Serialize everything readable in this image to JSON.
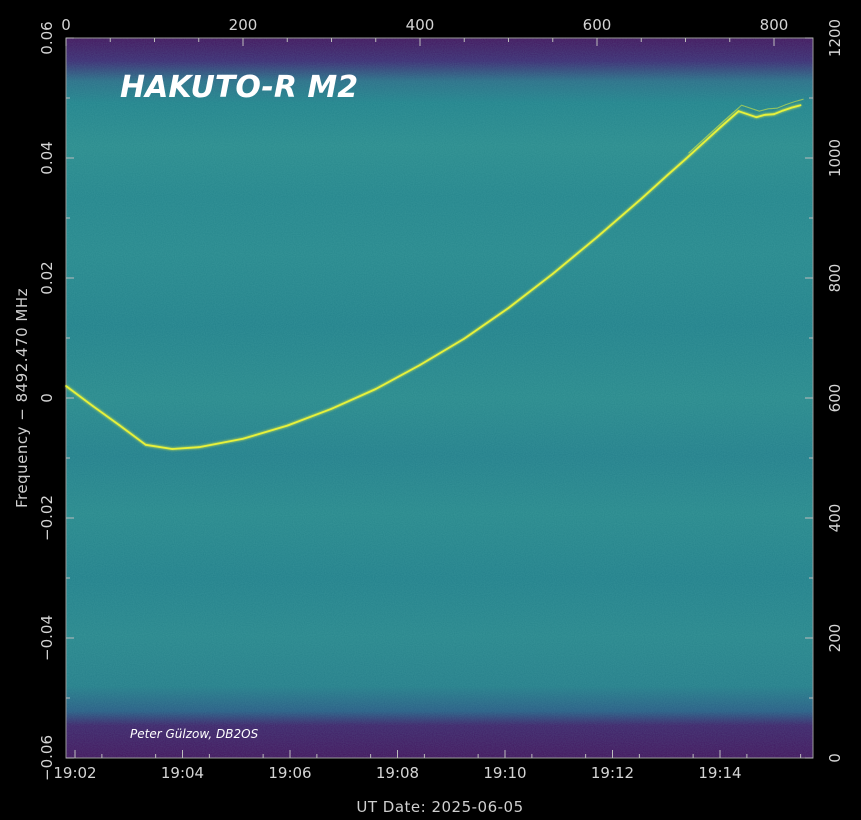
{
  "chart_data": {
    "type": "waterfall-spectrogram",
    "title": "HAKUTO-R M2",
    "credit": "Peter Gülzow, DB2OS",
    "xlabel": "UT Date: 2025-06-05",
    "ylabel": "Frequency − 8492.470 MHz",
    "x_bottom_ticks": [
      "19:02",
      "19:04",
      "19:06",
      "19:08",
      "19:10",
      "19:12",
      "19:14"
    ],
    "x_top_ticks": [
      "0",
      "200",
      "400",
      "600",
      "800"
    ],
    "y_left_ticks": [
      "0.06",
      "0.04",
      "0.02",
      "0",
      "−0.02",
      "−0.04",
      "−0.06"
    ],
    "y_right_ticks": [
      "1200",
      "1000",
      "800",
      "600",
      "400",
      "200",
      "0"
    ],
    "x_top_range": [
      0,
      1000
    ],
    "y_left_range": [
      -0.06,
      0.06
    ],
    "y_right_range": [
      0,
      1200
    ],
    "signal_trace": {
      "name": "",
      "x_bin": [
        0,
        30,
        60,
        90,
        120,
        150,
        200,
        250,
        300,
        350,
        400,
        450,
        500,
        550,
        600,
        650,
        680,
        700,
        720,
        740,
        760,
        780,
        790,
        800,
        810,
        820,
        830
      ],
      "freq_offset_mhz": [
        0.002,
        -0.0013,
        -0.0045,
        -0.0078,
        -0.0085,
        -0.0082,
        -0.0068,
        -0.0046,
        -0.0018,
        0.0015,
        0.0055,
        0.0099,
        0.015,
        0.0207,
        0.0268,
        0.0332,
        0.0372,
        0.0398,
        0.0425,
        0.0452,
        0.0478,
        0.0468,
        0.0472,
        0.0473,
        0.0479,
        0.0484,
        0.0488
      ]
    },
    "colors": {
      "background": "#000000",
      "noise_floor": "#26838c",
      "band_edge": "#44145d",
      "signal": "#e8f23a"
    },
    "grid": false
  }
}
